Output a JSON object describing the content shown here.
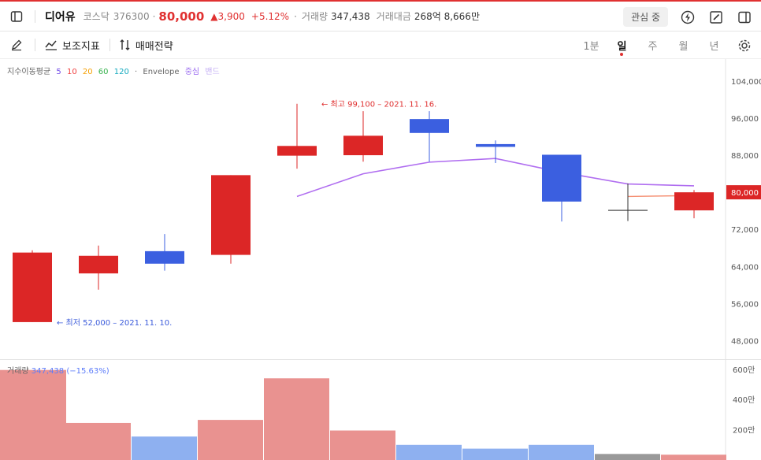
{
  "header": {
    "name": "디어유",
    "market": "코스닥",
    "code": "376300",
    "dot": "·",
    "price": "80,000",
    "change": "▲3,900",
    "change_pct": "+5.12%",
    "volume_label": "거래량",
    "volume": "347,438",
    "amount_label": "거래대금",
    "amount": "268억 8,666만",
    "watch_button": "관심 중",
    "icons": [
      "sidebar-toggle-icon",
      "lightning-icon",
      "edit-icon",
      "panel-icon"
    ]
  },
  "toolbar": {
    "indicators": "보조지표",
    "strategy": "매매전략",
    "periods": [
      {
        "label": "1분",
        "active": false
      },
      {
        "label": "일",
        "active": true
      },
      {
        "label": "주",
        "active": false
      },
      {
        "label": "월",
        "active": false
      },
      {
        "label": "년",
        "active": false
      }
    ]
  },
  "legend": {
    "ma_label": "지수이동평균",
    "ma_periods": [
      {
        "label": "5",
        "color": "#7048e8"
      },
      {
        "label": "10",
        "color": "#f03e3e"
      },
      {
        "label": "20",
        "color": "#f59f00"
      },
      {
        "label": "60",
        "color": "#37b24d"
      },
      {
        "label": "120",
        "color": "#15aabf"
      }
    ],
    "dot": "·",
    "envelope": "Envelope",
    "center": "중심",
    "band": "밴드"
  },
  "chart_data": {
    "type": "candlestick",
    "ylim": [
      44000,
      105000
    ],
    "price_ticks": [
      "104,000",
      "96,000",
      "88,000",
      "80,000",
      "72,000",
      "64,000",
      "56,000",
      "48,000"
    ],
    "candles": [
      {
        "open": 67000,
        "close": 52000,
        "high": 67500,
        "low": 52000,
        "color": "red"
      },
      {
        "open": 62500,
        "close": 66300,
        "high": 68500,
        "low": 59000,
        "color": "red"
      },
      {
        "open": 67300,
        "close": 64600,
        "high": 71000,
        "low": 63100,
        "color": "blue"
      },
      {
        "open": 66500,
        "close": 83700,
        "high": 83700,
        "low": 64600,
        "color": "red"
      },
      {
        "open": 87900,
        "close": 90000,
        "high": 99100,
        "low": 85100,
        "color": "red"
      },
      {
        "open": 88000,
        "close": 92200,
        "high": 97500,
        "low": 86600,
        "color": "red"
      },
      {
        "open": 95800,
        "close": 92800,
        "high": 97500,
        "low": 86600,
        "color": "blue"
      },
      {
        "open": 90400,
        "close": 89800,
        "high": 91200,
        "low": 86300,
        "color": "blue"
      },
      {
        "open": 88100,
        "close": 78000,
        "high": 88100,
        "low": 73700,
        "color": "blue"
      },
      {
        "open": 76100,
        "close": 76100,
        "high": 81900,
        "low": 73800,
        "color": "grey"
      },
      {
        "open": 76100,
        "close": 80000,
        "high": 80500,
        "low": 74400,
        "color": "red"
      }
    ],
    "envelope_center": [
      null,
      null,
      null,
      null,
      79100,
      84000,
      86500,
      87300,
      84300,
      81800,
      81400
    ],
    "ma5_tail": [
      null,
      null,
      null,
      null,
      null,
      null,
      null,
      null,
      null,
      79100,
      79300
    ],
    "high_annotation": "← 최고 99,100 – 2021. 11. 16.",
    "low_annotation": "← 최저 52,000 – 2021. 11. 10.",
    "last_price_label": "80,000",
    "volume": {
      "label": "거래량",
      "value": "347,438",
      "change": "(−15.63%)",
      "unit_ticks": [
        "600만",
        "400만",
        "200만"
      ],
      "ylim": [
        0,
        6300000
      ],
      "values": [
        5950000,
        2450000,
        1550000,
        2650000,
        5400000,
        1950000,
        1000000,
        750000,
        1000000,
        400000,
        350000
      ],
      "colors": [
        "#e99290",
        "#e99290",
        "#8eb0f0",
        "#e99290",
        "#e99290",
        "#e99290",
        "#8eb0f0",
        "#8eb0f0",
        "#8eb0f0",
        "#999999",
        "#e99290"
      ]
    }
  }
}
